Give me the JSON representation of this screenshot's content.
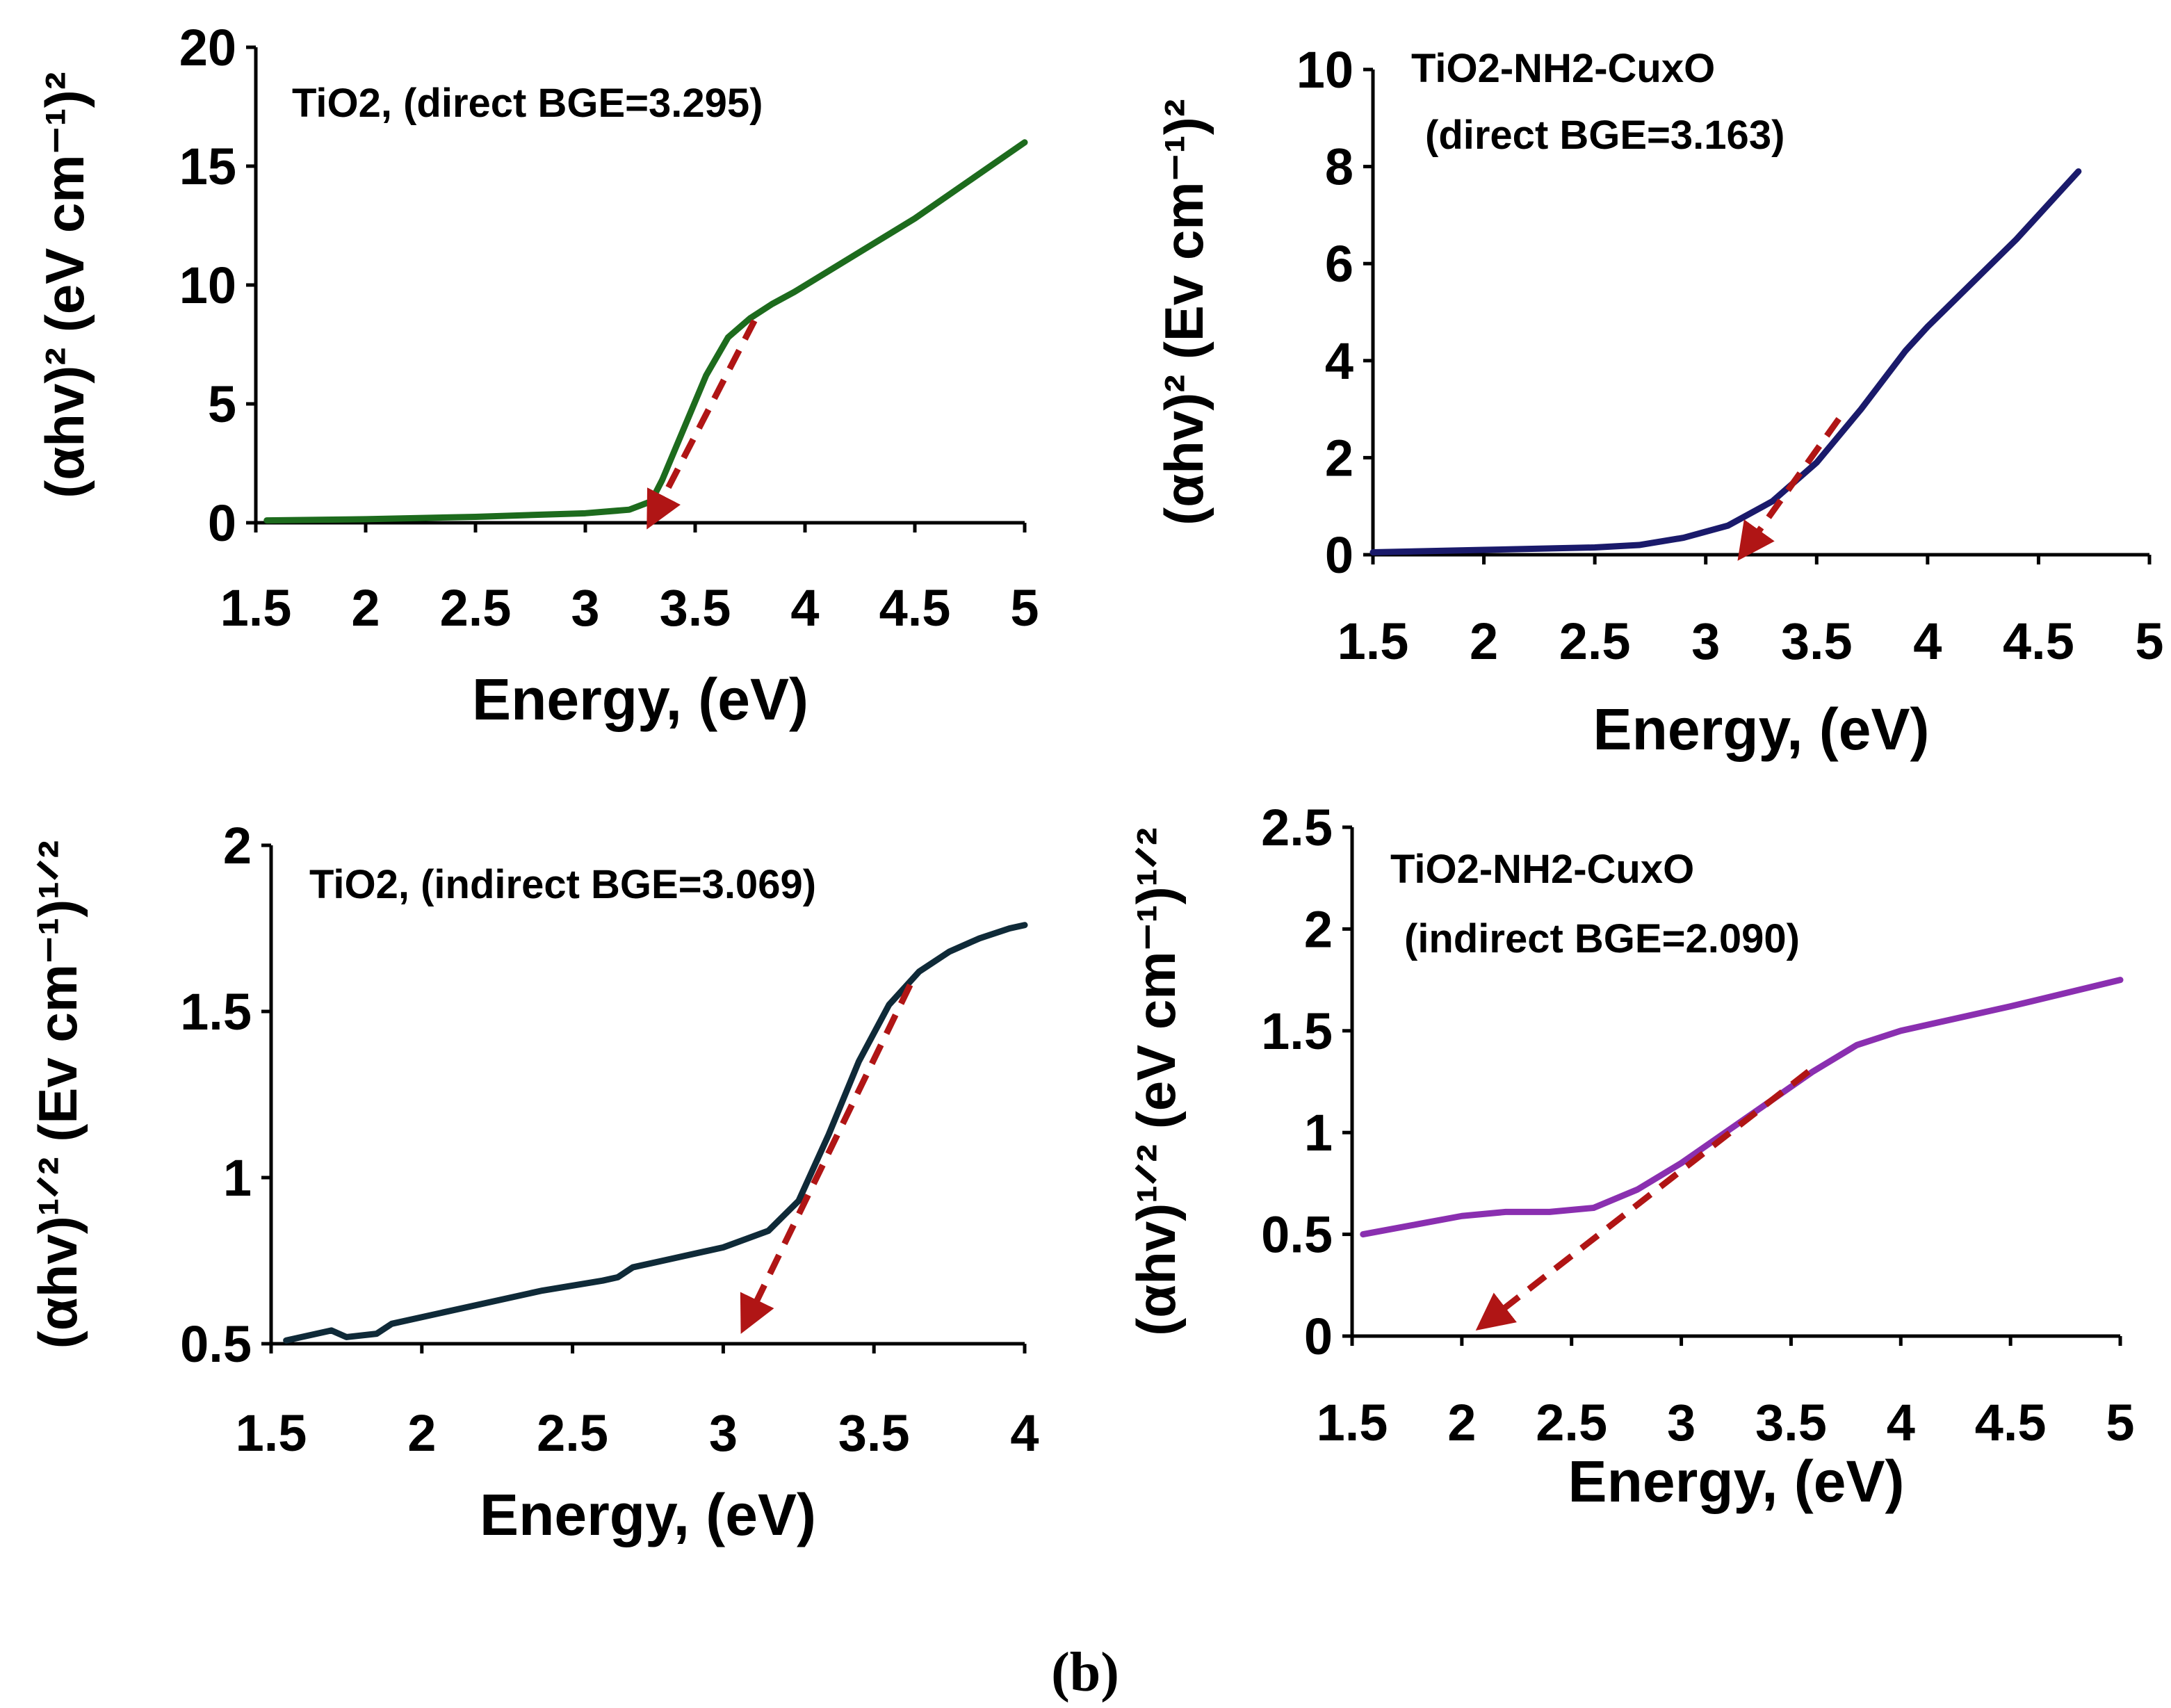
{
  "figure_label": "b",
  "chart_data": [
    {
      "type": "line",
      "id": "tl",
      "title_lines": [
        "TiO2, (direct BGE=3.295)"
      ],
      "xlabel": "Energy, (eV)",
      "ylabel": "(αhv)² (eV cm⁻¹)²",
      "xlim": [
        1.5,
        5
      ],
      "ylim": [
        0,
        20
      ],
      "xticks": [
        "1.5",
        "2",
        "2.5",
        "3",
        "3.5",
        "4",
        "4.5",
        "5"
      ],
      "yticks": [
        "0",
        "5",
        "10",
        "15",
        "20"
      ],
      "series": [
        {
          "name": "TiO2 direct",
          "color": "#1d6b1d",
          "x": [
            1.55,
            2.0,
            2.5,
            3.0,
            3.2,
            3.3,
            3.35,
            3.45,
            3.55,
            3.65,
            3.75,
            3.85,
            3.95,
            4.5,
            5.0
          ],
          "y": [
            0.1,
            0.15,
            0.25,
            0.4,
            0.55,
            0.9,
            1.8,
            4.0,
            6.2,
            7.8,
            8.6,
            9.2,
            9.7,
            12.8,
            16.0
          ]
        }
      ],
      "fit_arrow": {
        "from": [
          3.77,
          8.5
        ],
        "to": [
          3.295,
          0
        ],
        "color": "#b01515"
      }
    },
    {
      "type": "line",
      "id": "tr",
      "title_lines": [
        "TiO2-NH2-CuxO",
        "(direct BGE=3.163)"
      ],
      "xlabel": "Energy, (eV)",
      "ylabel": "(αhv)² (Ev cm⁻¹)²",
      "xlim": [
        1.5,
        5
      ],
      "ylim": [
        0,
        10
      ],
      "xticks": [
        "1.5",
        "2",
        "2.5",
        "3",
        "3.5",
        "4",
        "4.5",
        "5"
      ],
      "yticks": [
        "0",
        "2",
        "4",
        "6",
        "8",
        "10"
      ],
      "series": [
        {
          "name": "TiO2-NH2-CuxO direct",
          "color": "#1a1a6b",
          "x": [
            1.5,
            2.0,
            2.5,
            2.7,
            2.9,
            3.1,
            3.3,
            3.5,
            3.7,
            3.9,
            4.0,
            4.2,
            4.4,
            4.6,
            4.68
          ],
          "y": [
            0.05,
            0.1,
            0.15,
            0.2,
            0.35,
            0.6,
            1.1,
            1.9,
            3.0,
            4.2,
            4.7,
            5.6,
            6.5,
            7.5,
            7.9
          ]
        }
      ],
      "fit_arrow": {
        "from": [
          3.6,
          2.8
        ],
        "to": [
          3.163,
          0
        ],
        "color": "#b01515"
      }
    },
    {
      "type": "line",
      "id": "bl",
      "title_lines": [
        "TiO2, (indirect BGE=3.069)"
      ],
      "xlabel": "Energy, (eV)",
      "ylabel": "(αhv)¹ᐟ² (Ev cm⁻¹)¹ᐟ²",
      "xlim": [
        1.5,
        4
      ],
      "ylim": [
        0.5,
        2
      ],
      "xticks": [
        "1.5",
        "2",
        "2.5",
        "3",
        "3.5",
        "4"
      ],
      "yticks": [
        "0.5",
        "1",
        "1.5",
        "2"
      ],
      "series": [
        {
          "name": "TiO2 indirect",
          "color": "#0f2a38",
          "x": [
            1.55,
            1.7,
            1.75,
            1.85,
            1.9,
            2.0,
            2.2,
            2.4,
            2.6,
            2.65,
            2.7,
            2.8,
            3.0,
            3.15,
            3.25,
            3.35,
            3.45,
            3.55,
            3.65,
            3.75,
            3.85,
            3.95,
            4.0
          ],
          "y": [
            0.51,
            0.54,
            0.52,
            0.53,
            0.56,
            0.58,
            0.62,
            0.66,
            0.69,
            0.7,
            0.73,
            0.75,
            0.79,
            0.84,
            0.93,
            1.13,
            1.35,
            1.52,
            1.62,
            1.68,
            1.72,
            1.75,
            1.76
          ]
        }
      ],
      "fit_arrow": {
        "from": [
          3.62,
          1.58
        ],
        "to": [
          3.069,
          0.55
        ],
        "color": "#b01515"
      }
    },
    {
      "type": "line",
      "id": "br",
      "title_lines": [
        "TiO2-NH2-CuxO",
        "(indirect BGE=2.090)"
      ],
      "xlabel": "Energy, (eV)",
      "ylabel": "(αhv)¹ᐟ² (eV cm⁻¹)¹ᐟ²",
      "xlim": [
        1.5,
        5
      ],
      "ylim": [
        0,
        2.5
      ],
      "xticks": [
        "1.5",
        "2",
        "2.5",
        "3",
        "3.5",
        "4",
        "4.5",
        "5"
      ],
      "yticks": [
        "0",
        "0.5",
        "1",
        "1.5",
        "2",
        "2.5"
      ],
      "series": [
        {
          "name": "TiO2-NH2-CuxO indirect",
          "color": "#8a2fb0",
          "x": [
            1.55,
            1.8,
            2.0,
            2.2,
            2.4,
            2.6,
            2.8,
            3.0,
            3.2,
            3.4,
            3.6,
            3.8,
            4.0,
            4.5,
            5.0
          ],
          "y": [
            0.5,
            0.55,
            0.59,
            0.61,
            0.61,
            0.63,
            0.72,
            0.85,
            1.0,
            1.15,
            1.3,
            1.43,
            1.5,
            1.62,
            1.75
          ]
        }
      ],
      "fit_arrow": {
        "from": [
          3.58,
          1.3
        ],
        "to": [
          2.09,
          0.05
        ],
        "color": "#b01515"
      }
    }
  ]
}
